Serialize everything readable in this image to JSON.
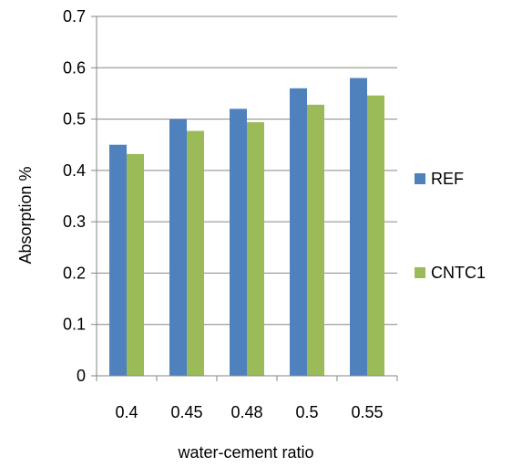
{
  "chart_data": {
    "type": "bar",
    "title": "",
    "categories": [
      "0.4",
      "0.45",
      "0.48",
      "0.5",
      "0.55"
    ],
    "series": [
      {
        "name": "REF",
        "color": "#4f81bd",
        "values": [
          0.45,
          0.5,
          0.52,
          0.56,
          0.58
        ]
      },
      {
        "name": "CNTC1",
        "color": "#9bbb59",
        "values": [
          0.432,
          0.477,
          0.494,
          0.528,
          0.546
        ]
      }
    ],
    "xlabel": "water-cement ratio",
    "ylabel": "Absorption %",
    "ylim": [
      0,
      0.7
    ],
    "yticks": [
      "0",
      "0.1",
      "0.2",
      "0.3",
      "0.4",
      "0.5",
      "0.6",
      "0.7"
    ],
    "grid": true,
    "legend_position": "right"
  }
}
